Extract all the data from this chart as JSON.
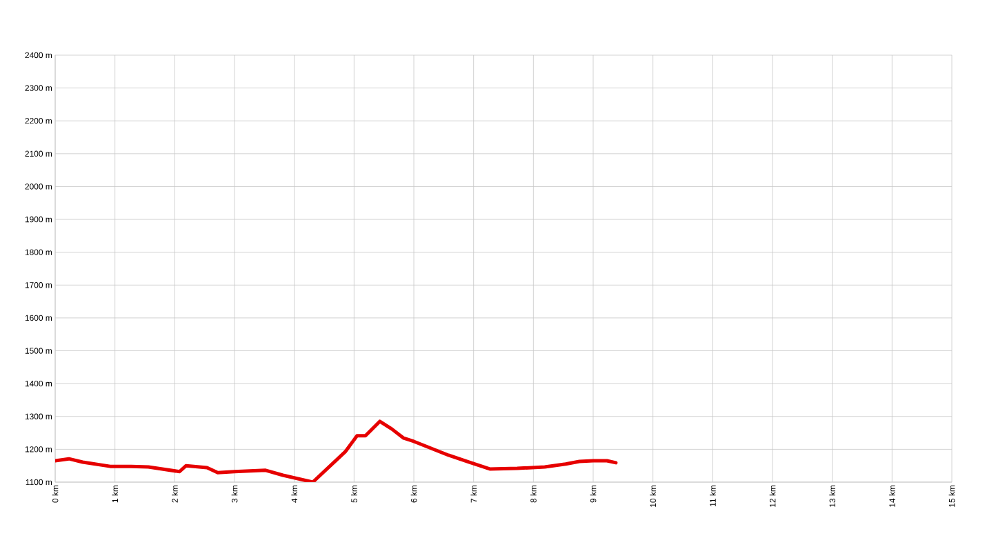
{
  "chart_data": {
    "type": "line",
    "x": [
      0,
      0.23,
      0.46,
      0.92,
      1.27,
      1.56,
      2.08,
      2.19,
      2.54,
      2.72,
      3.0,
      3.52,
      3.81,
      4.31,
      4.85,
      5.05,
      5.19,
      5.43,
      5.63,
      5.83,
      6.0,
      6.58,
      6.92,
      7.27,
      7.73,
      8.19,
      8.54,
      8.77,
      9.0,
      9.23,
      9.38
    ],
    "series": [
      {
        "color": "#e60000",
        "values": [
          1165,
          1171,
          1161,
          1148,
          1148,
          1146,
          1132,
          1150,
          1144,
          1129,
          1132,
          1136,
          1121,
          1100,
          1192,
          1241,
          1241,
          1285,
          1262,
          1234,
          1224,
          1182,
          1161,
          1140,
          1142,
          1146,
          1155,
          1163,
          1165,
          1165,
          1159
        ]
      }
    ],
    "xlim": [
      0,
      15
    ],
    "ylim": [
      1100,
      2400
    ],
    "xticks": [
      {
        "value": 0,
        "label": "0 km"
      },
      {
        "value": 1,
        "label": "1 km"
      },
      {
        "value": 2,
        "label": "2 km"
      },
      {
        "value": 3,
        "label": "3 km"
      },
      {
        "value": 4,
        "label": "4 km"
      },
      {
        "value": 5,
        "label": "5 km"
      },
      {
        "value": 6,
        "label": "6 km"
      },
      {
        "value": 7,
        "label": "7 km"
      },
      {
        "value": 8,
        "label": "8 km"
      },
      {
        "value": 9,
        "label": "9 km"
      },
      {
        "value": 10,
        "label": "10 km"
      },
      {
        "value": 11,
        "label": "11 km"
      },
      {
        "value": 12,
        "label": "12 km"
      },
      {
        "value": 13,
        "label": "13 km"
      },
      {
        "value": 14,
        "label": "14 km"
      },
      {
        "value": 15,
        "label": "15 km"
      }
    ],
    "yticks": [
      {
        "value": 1100,
        "label": "1100 m"
      },
      {
        "value": 1200,
        "label": "1200 m"
      },
      {
        "value": 1300,
        "label": "1300 m"
      },
      {
        "value": 1400,
        "label": "1400 m"
      },
      {
        "value": 1500,
        "label": "1500 m"
      },
      {
        "value": 1600,
        "label": "1600 m"
      },
      {
        "value": 1700,
        "label": "1700 m"
      },
      {
        "value": 1800,
        "label": "1800 m"
      },
      {
        "value": 1900,
        "label": "1900 m"
      },
      {
        "value": 2000,
        "label": "2000 m"
      },
      {
        "value": 2100,
        "label": "2100 m"
      },
      {
        "value": 2200,
        "label": "2200 m"
      },
      {
        "value": 2300,
        "label": "2300 m"
      },
      {
        "value": 2400,
        "label": "2400 m"
      }
    ],
    "grid": true,
    "legend": false,
    "marker": "none",
    "line_style": "solid"
  }
}
